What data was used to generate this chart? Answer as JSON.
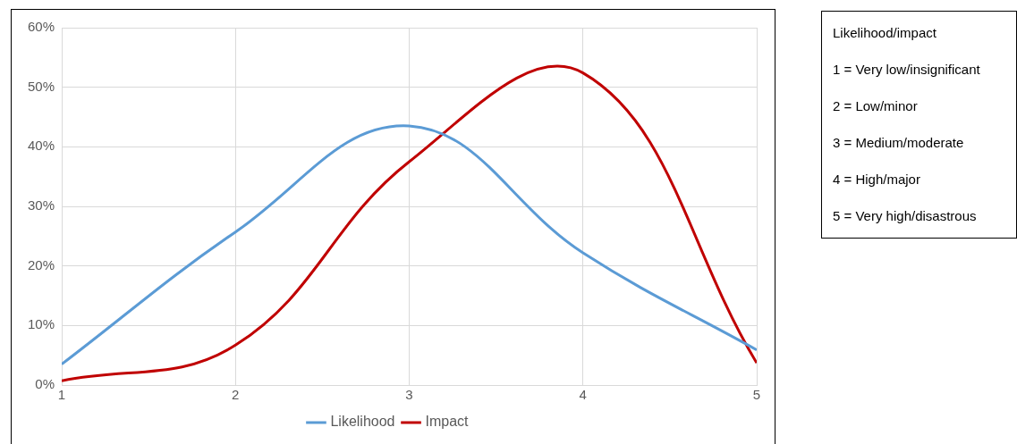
{
  "chart_data": {
    "type": "line",
    "x": [
      1,
      2,
      3,
      4,
      5
    ],
    "xlim": [
      1,
      5
    ],
    "xticks": [
      1,
      2,
      3,
      4,
      5
    ],
    "ylim": [
      0,
      60
    ],
    "yticks": [
      {
        "value": 0,
        "label": "0%"
      },
      {
        "value": 10,
        "label": "10%"
      },
      {
        "value": 20,
        "label": "20%"
      },
      {
        "value": 30,
        "label": "30%"
      },
      {
        "value": 40,
        "label": "40%"
      },
      {
        "value": 50,
        "label": "50%"
      },
      {
        "value": 60,
        "label": "60%"
      }
    ],
    "series": [
      {
        "name": "Likelihood",
        "color": "#5b9bd5",
        "values": [
          3.5,
          25.7,
          43.5,
          22.2,
          5.9
        ]
      },
      {
        "name": "Impact",
        "color": "#c00000",
        "values": [
          0.7,
          6.7,
          37.5,
          52.4,
          3.7
        ]
      }
    ],
    "grid": true,
    "legend": "bottom",
    "marker": "none",
    "line_style": "solid",
    "annotations": [
      "Likelihood/impact",
      "1 = Very low/insignificant",
      "2 = Low/minor",
      "3 = Medium/moderate",
      "4 = High/major",
      "5 = Very high/disastrous"
    ]
  }
}
